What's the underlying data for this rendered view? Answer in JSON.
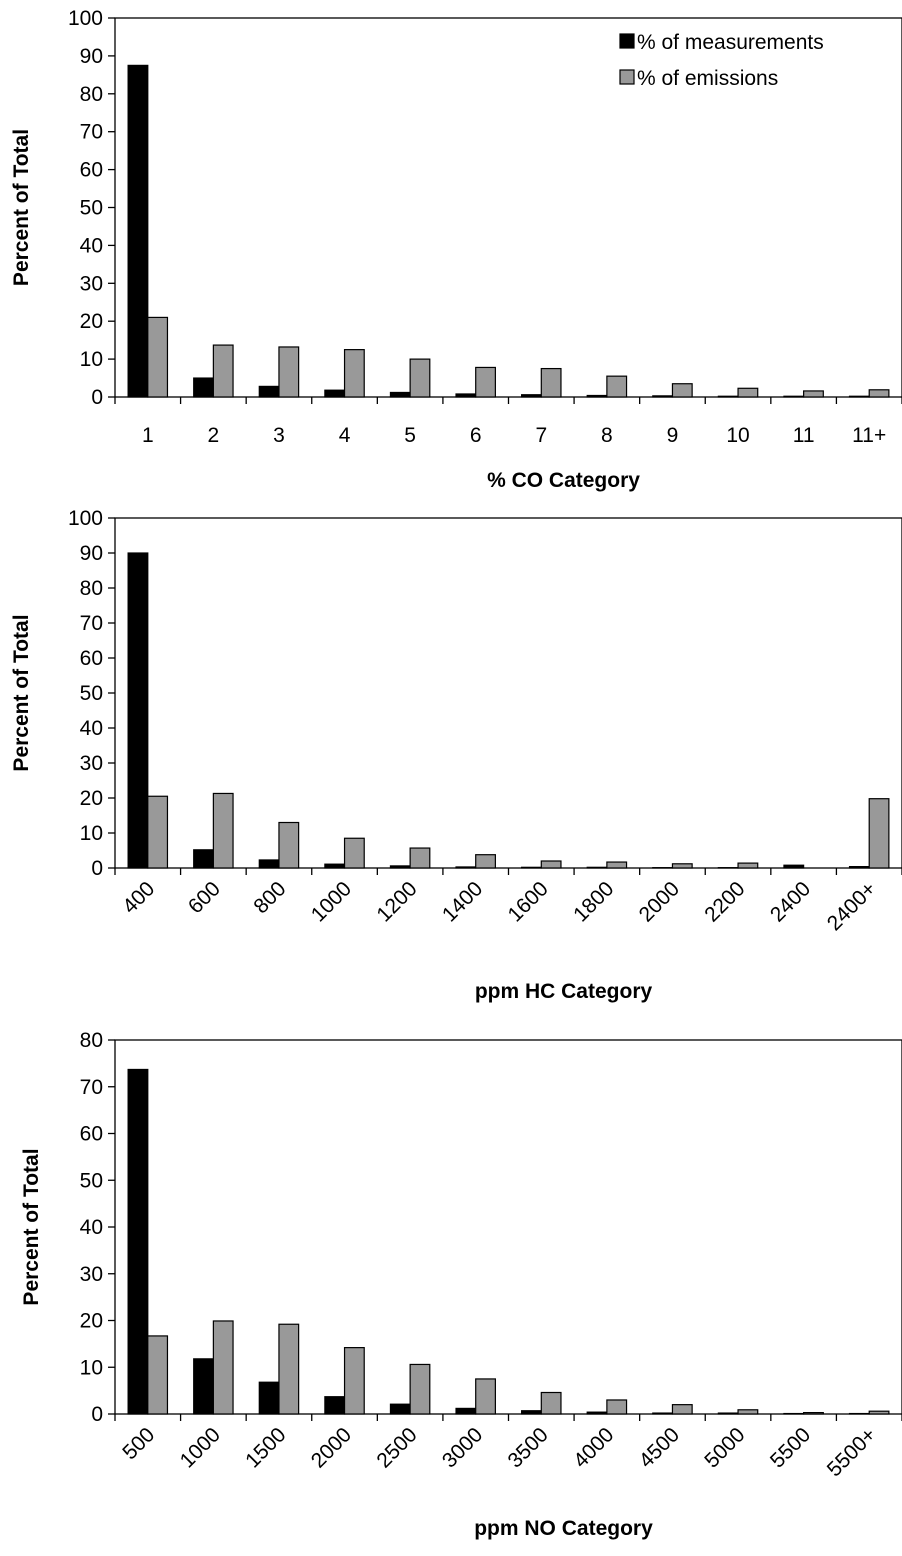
{
  "legend": {
    "placement": "top-right",
    "entries": [
      "% of measurements",
      "% of emissions"
    ]
  },
  "colors": {
    "measurements": "#000000",
    "emissions": "#999999"
  },
  "chart_data": [
    {
      "type": "bar",
      "xlabel": "% CO Category",
      "ylabel": "Percent of Total",
      "ylim": [
        0,
        100
      ],
      "yticks": [
        0,
        10,
        20,
        30,
        40,
        50,
        60,
        70,
        80,
        90,
        100
      ],
      "tick_rotation": 0,
      "show_legend": true,
      "categories": [
        "1",
        "2",
        "3",
        "4",
        "5",
        "6",
        "7",
        "8",
        "9",
        "10",
        "11",
        "11+"
      ],
      "series": [
        {
          "name": "% of measurements",
          "values": [
            87.5,
            5.0,
            2.8,
            1.8,
            1.2,
            0.8,
            0.6,
            0.4,
            0.3,
            0.2,
            0.2,
            0.2
          ]
        },
        {
          "name": "% of emissions",
          "values": [
            21.0,
            13.7,
            13.2,
            12.5,
            10.0,
            7.8,
            7.5,
            5.5,
            3.5,
            2.3,
            1.6,
            1.9
          ]
        }
      ]
    },
    {
      "type": "bar",
      "xlabel": "ppm HC Category",
      "ylabel": "Percent of Total",
      "ylim": [
        0,
        100
      ],
      "yticks": [
        0,
        10,
        20,
        30,
        40,
        50,
        60,
        70,
        80,
        90,
        100
      ],
      "tick_rotation": -45,
      "show_legend": false,
      "categories": [
        "400",
        "600",
        "800",
        "1000",
        "1200",
        "1400",
        "1600",
        "1800",
        "2000",
        "2200",
        "2400",
        "2400+"
      ],
      "series": [
        {
          "name": "% of measurements",
          "values": [
            90.0,
            5.2,
            2.3,
            1.1,
            0.6,
            0.3,
            0.2,
            0.2,
            0.1,
            0.1,
            0.8,
            0.4
          ]
        },
        {
          "name": "% of emissions",
          "values": [
            20.5,
            21.3,
            13.0,
            8.5,
            5.7,
            3.8,
            2.0,
            1.7,
            1.2,
            1.4,
            0.0,
            19.8
          ]
        }
      ]
    },
    {
      "type": "bar",
      "xlabel": "ppm NO Category",
      "ylabel": "Percent of Total",
      "ylim": [
        0,
        80
      ],
      "yticks": [
        0,
        10,
        20,
        30,
        40,
        50,
        60,
        70,
        80
      ],
      "tick_rotation": -45,
      "show_legend": false,
      "categories": [
        "500",
        "1000",
        "1500",
        "2000",
        "2500",
        "3000",
        "3500",
        "4000",
        "4500",
        "5000",
        "5500",
        "5500+"
      ],
      "series": [
        {
          "name": "% of measurements",
          "values": [
            73.7,
            11.8,
            6.8,
            3.7,
            2.1,
            1.2,
            0.7,
            0.4,
            0.2,
            0.2,
            0.1,
            0.1
          ]
        },
        {
          "name": "% of emissions",
          "values": [
            16.7,
            19.9,
            19.2,
            14.2,
            10.6,
            7.5,
            4.6,
            3.0,
            2.0,
            0.9,
            0.3,
            0.6
          ]
        }
      ]
    }
  ]
}
